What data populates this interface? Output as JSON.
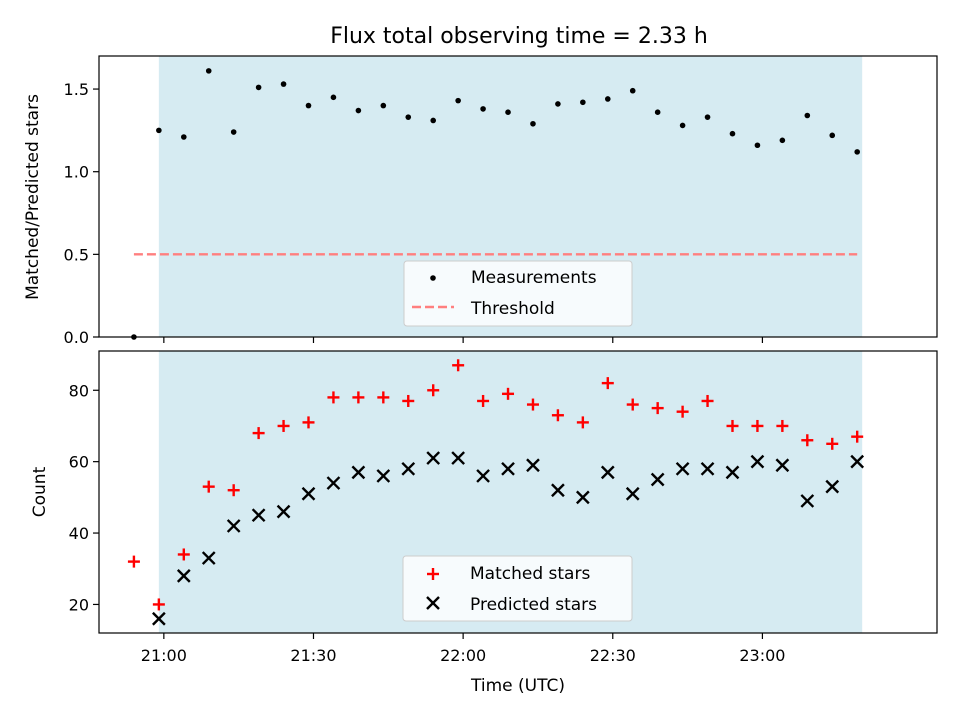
{
  "chart_data": [
    {
      "type": "scatter",
      "title": "Flux total observing time = 2.33 h",
      "xlabel": "",
      "ylabel": "Matched/Predicted stars",
      "ylim": [
        0,
        1.7
      ],
      "yticks": [
        0.0,
        0.5,
        1.0,
        1.5
      ],
      "ytick_labels": [
        "0.0",
        "0.5",
        "1.0",
        "1.5"
      ],
      "x_time_range": [
        "20:47",
        "23:35"
      ],
      "shaded_span": [
        "20:59",
        "23:20"
      ],
      "shade_color": "#add8e6",
      "legend": {
        "placement": "lower center",
        "entries": [
          "Measurements",
          "Threshold"
        ]
      },
      "series": [
        {
          "name": "Measurements",
          "marker": "dot",
          "color": "#000000",
          "x": [
            "20:54",
            "20:59",
            "21:04",
            "21:09",
            "21:14",
            "21:19",
            "21:24",
            "21:29",
            "21:34",
            "21:39",
            "21:44",
            "21:49",
            "21:54",
            "21:59",
            "22:04",
            "22:09",
            "22:14",
            "22:19",
            "22:24",
            "22:29",
            "22:34",
            "22:39",
            "22:44",
            "22:49",
            "22:54",
            "22:59",
            "23:04",
            "23:09",
            "23:14",
            "23:19"
          ],
          "y": [
            0.0,
            1.25,
            1.21,
            1.61,
            1.24,
            1.51,
            1.53,
            1.4,
            1.45,
            1.37,
            1.4,
            1.33,
            1.31,
            1.43,
            1.38,
            1.36,
            1.29,
            1.41,
            1.42,
            1.44,
            1.49,
            1.36,
            1.28,
            1.33,
            1.23,
            1.16,
            1.19,
            1.34,
            1.22,
            1.12
          ]
        },
        {
          "name": "Threshold",
          "style": "dashed",
          "color": "#ff7f7f",
          "x": [
            "20:54",
            "23:19"
          ],
          "y": [
            0.5,
            0.5
          ]
        }
      ]
    },
    {
      "type": "scatter",
      "title": "",
      "xlabel": "Time (UTC)",
      "ylabel": "Count",
      "ylim": [
        12,
        91
      ],
      "yticks": [
        20,
        40,
        60,
        80
      ],
      "ytick_labels": [
        "20",
        "40",
        "60",
        "80"
      ],
      "xticks": [
        "21:00",
        "21:30",
        "22:00",
        "22:30",
        "23:00"
      ],
      "x_time_range": [
        "20:47",
        "23:35"
      ],
      "shaded_span": [
        "20:59",
        "23:20"
      ],
      "shade_color": "#add8e6",
      "legend": {
        "placement": "lower center",
        "entries": [
          "Matched stars",
          "Predicted stars"
        ]
      },
      "series": [
        {
          "name": "Matched stars",
          "marker": "plus",
          "color": "#ff0000",
          "x": [
            "20:54",
            "20:59",
            "21:04",
            "21:09",
            "21:14",
            "21:19",
            "21:24",
            "21:29",
            "21:34",
            "21:39",
            "21:44",
            "21:49",
            "21:54",
            "21:59",
            "22:04",
            "22:09",
            "22:14",
            "22:19",
            "22:24",
            "22:29",
            "22:34",
            "22:39",
            "22:44",
            "22:49",
            "22:54",
            "22:59",
            "23:04",
            "23:09",
            "23:14",
            "23:19"
          ],
          "y": [
            32,
            20,
            34,
            53,
            52,
            68,
            70,
            71,
            78,
            78,
            78,
            77,
            80,
            87,
            77,
            79,
            76,
            73,
            71,
            82,
            76,
            75,
            74,
            77,
            70,
            70,
            70,
            66,
            65,
            67
          ]
        },
        {
          "name": "Predicted stars",
          "marker": "x",
          "color": "#000000",
          "x": [
            "20:59",
            "21:04",
            "21:09",
            "21:14",
            "21:19",
            "21:24",
            "21:29",
            "21:34",
            "21:39",
            "21:44",
            "21:49",
            "21:54",
            "21:59",
            "22:04",
            "22:09",
            "22:14",
            "22:19",
            "22:24",
            "22:29",
            "22:34",
            "22:39",
            "22:44",
            "22:49",
            "22:54",
            "22:59",
            "23:04",
            "23:09",
            "23:14",
            "23:19"
          ],
          "y": [
            16,
            28,
            33,
            42,
            45,
            46,
            51,
            54,
            57,
            56,
            58,
            61,
            61,
            56,
            58,
            59,
            52,
            50,
            57,
            51,
            55,
            58,
            58,
            57,
            60,
            59,
            49,
            53,
            60
          ]
        }
      ]
    }
  ]
}
